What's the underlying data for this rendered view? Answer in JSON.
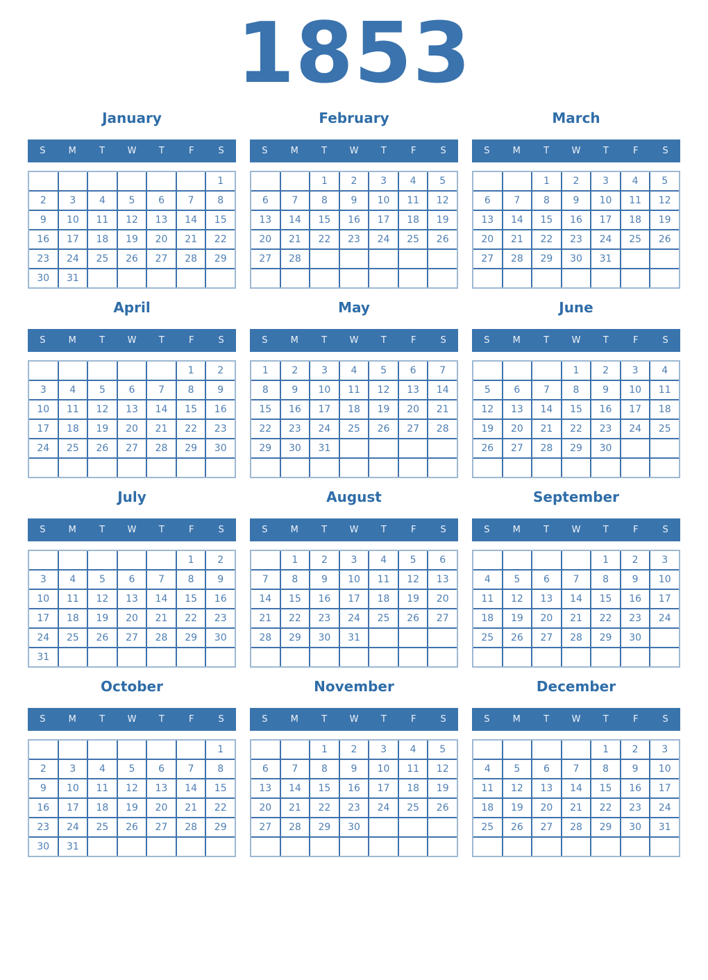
{
  "year": "1853",
  "colors": {
    "accent_blue": "#3a74ad",
    "title_blue": "#2f6da8",
    "date_text_blue": "#4d7eb3",
    "grid_line_blue": "#3e72ac",
    "grid_outer_border": "#9db8d3",
    "weekday_text": "#eef3f8",
    "background": "#ffffff"
  },
  "weekday_headers": [
    "S",
    "M",
    "T",
    "W",
    "T",
    "F",
    "S"
  ],
  "months": [
    {
      "name": "January",
      "weeks": [
        [
          "",
          "",
          "",
          "",
          "",
          "",
          "1"
        ],
        [
          "2",
          "3",
          "4",
          "5",
          "6",
          "7",
          "8"
        ],
        [
          "9",
          "10",
          "11",
          "12",
          "13",
          "14",
          "15"
        ],
        [
          "16",
          "17",
          "18",
          "19",
          "20",
          "21",
          "22"
        ],
        [
          "23",
          "24",
          "25",
          "26",
          "27",
          "28",
          "29"
        ],
        [
          "30",
          "31",
          "",
          "",
          "",
          "",
          ""
        ]
      ]
    },
    {
      "name": "February",
      "weeks": [
        [
          "",
          "",
          "1",
          "2",
          "3",
          "4",
          "5"
        ],
        [
          "6",
          "7",
          "8",
          "9",
          "10",
          "11",
          "12"
        ],
        [
          "13",
          "14",
          "15",
          "16",
          "17",
          "18",
          "19"
        ],
        [
          "20",
          "21",
          "22",
          "23",
          "24",
          "25",
          "26"
        ],
        [
          "27",
          "28",
          "",
          "",
          "",
          "",
          ""
        ],
        [
          "",
          "",
          "",
          "",
          "",
          "",
          ""
        ]
      ]
    },
    {
      "name": "March",
      "weeks": [
        [
          "",
          "",
          "1",
          "2",
          "3",
          "4",
          "5"
        ],
        [
          "6",
          "7",
          "8",
          "9",
          "10",
          "11",
          "12"
        ],
        [
          "13",
          "14",
          "15",
          "16",
          "17",
          "18",
          "19"
        ],
        [
          "20",
          "21",
          "22",
          "23",
          "24",
          "25",
          "26"
        ],
        [
          "27",
          "28",
          "29",
          "30",
          "31",
          "",
          ""
        ],
        [
          "",
          "",
          "",
          "",
          "",
          "",
          ""
        ]
      ]
    },
    {
      "name": "April",
      "weeks": [
        [
          "",
          "",
          "",
          "",
          "",
          "1",
          "2"
        ],
        [
          "3",
          "4",
          "5",
          "6",
          "7",
          "8",
          "9"
        ],
        [
          "10",
          "11",
          "12",
          "13",
          "14",
          "15",
          "16"
        ],
        [
          "17",
          "18",
          "19",
          "20",
          "21",
          "22",
          "23"
        ],
        [
          "24",
          "25",
          "26",
          "27",
          "28",
          "29",
          "30"
        ],
        [
          "",
          "",
          "",
          "",
          "",
          "",
          ""
        ]
      ]
    },
    {
      "name": "May",
      "weeks": [
        [
          "1",
          "2",
          "3",
          "4",
          "5",
          "6",
          "7"
        ],
        [
          "8",
          "9",
          "10",
          "11",
          "12",
          "13",
          "14"
        ],
        [
          "15",
          "16",
          "17",
          "18",
          "19",
          "20",
          "21"
        ],
        [
          "22",
          "23",
          "24",
          "25",
          "26",
          "27",
          "28"
        ],
        [
          "29",
          "30",
          "31",
          "",
          "",
          "",
          ""
        ],
        [
          "",
          "",
          "",
          "",
          "",
          "",
          ""
        ]
      ]
    },
    {
      "name": "June",
      "weeks": [
        [
          "",
          "",
          "",
          "1",
          "2",
          "3",
          "4"
        ],
        [
          "5",
          "6",
          "7",
          "8",
          "9",
          "10",
          "11"
        ],
        [
          "12",
          "13",
          "14",
          "15",
          "16",
          "17",
          "18"
        ],
        [
          "19",
          "20",
          "21",
          "22",
          "23",
          "24",
          "25"
        ],
        [
          "26",
          "27",
          "28",
          "29",
          "30",
          "",
          ""
        ],
        [
          "",
          "",
          "",
          "",
          "",
          "",
          ""
        ]
      ]
    },
    {
      "name": "July",
      "weeks": [
        [
          "",
          "",
          "",
          "",
          "",
          "1",
          "2"
        ],
        [
          "3",
          "4",
          "5",
          "6",
          "7",
          "8",
          "9"
        ],
        [
          "10",
          "11",
          "12",
          "13",
          "14",
          "15",
          "16"
        ],
        [
          "17",
          "18",
          "19",
          "20",
          "21",
          "22",
          "23"
        ],
        [
          "24",
          "25",
          "26",
          "27",
          "28",
          "29",
          "30"
        ],
        [
          "31",
          "",
          "",
          "",
          "",
          "",
          ""
        ]
      ]
    },
    {
      "name": "August",
      "weeks": [
        [
          "",
          "1",
          "2",
          "3",
          "4",
          "5",
          "6"
        ],
        [
          "7",
          "8",
          "9",
          "10",
          "11",
          "12",
          "13"
        ],
        [
          "14",
          "15",
          "16",
          "17",
          "18",
          "19",
          "20"
        ],
        [
          "21",
          "22",
          "23",
          "24",
          "25",
          "26",
          "27"
        ],
        [
          "28",
          "29",
          "30",
          "31",
          "",
          "",
          ""
        ],
        [
          "",
          "",
          "",
          "",
          "",
          "",
          ""
        ]
      ]
    },
    {
      "name": "September",
      "weeks": [
        [
          "",
          "",
          "",
          "",
          "1",
          "2",
          "3"
        ],
        [
          "4",
          "5",
          "6",
          "7",
          "8",
          "9",
          "10"
        ],
        [
          "11",
          "12",
          "13",
          "14",
          "15",
          "16",
          "17"
        ],
        [
          "18",
          "19",
          "20",
          "21",
          "22",
          "23",
          "24"
        ],
        [
          "25",
          "26",
          "27",
          "28",
          "29",
          "30",
          ""
        ],
        [
          "",
          "",
          "",
          "",
          "",
          "",
          ""
        ]
      ]
    },
    {
      "name": "October",
      "weeks": [
        [
          "",
          "",
          "",
          "",
          "",
          "",
          "1"
        ],
        [
          "2",
          "3",
          "4",
          "5",
          "6",
          "7",
          "8"
        ],
        [
          "9",
          "10",
          "11",
          "12",
          "13",
          "14",
          "15"
        ],
        [
          "16",
          "17",
          "18",
          "19",
          "20",
          "21",
          "22"
        ],
        [
          "23",
          "24",
          "25",
          "26",
          "27",
          "28",
          "29"
        ],
        [
          "30",
          "31",
          "",
          "",
          "",
          "",
          ""
        ]
      ]
    },
    {
      "name": "November",
      "weeks": [
        [
          "",
          "",
          "1",
          "2",
          "3",
          "4",
          "5"
        ],
        [
          "6",
          "7",
          "8",
          "9",
          "10",
          "11",
          "12"
        ],
        [
          "13",
          "14",
          "15",
          "16",
          "17",
          "18",
          "19"
        ],
        [
          "20",
          "21",
          "22",
          "23",
          "24",
          "25",
          "26"
        ],
        [
          "27",
          "28",
          "29",
          "30",
          "",
          "",
          ""
        ],
        [
          "",
          "",
          "",
          "",
          "",
          "",
          ""
        ]
      ]
    },
    {
      "name": "December",
      "weeks": [
        [
          "",
          "",
          "",
          "",
          "1",
          "2",
          "3"
        ],
        [
          "4",
          "5",
          "6",
          "7",
          "8",
          "9",
          "10"
        ],
        [
          "11",
          "12",
          "13",
          "14",
          "15",
          "16",
          "17"
        ],
        [
          "18",
          "19",
          "20",
          "21",
          "22",
          "23",
          "24"
        ],
        [
          "25",
          "26",
          "27",
          "28",
          "29",
          "30",
          "31"
        ],
        [
          "",
          "",
          "",
          "",
          "",
          "",
          ""
        ]
      ]
    }
  ]
}
